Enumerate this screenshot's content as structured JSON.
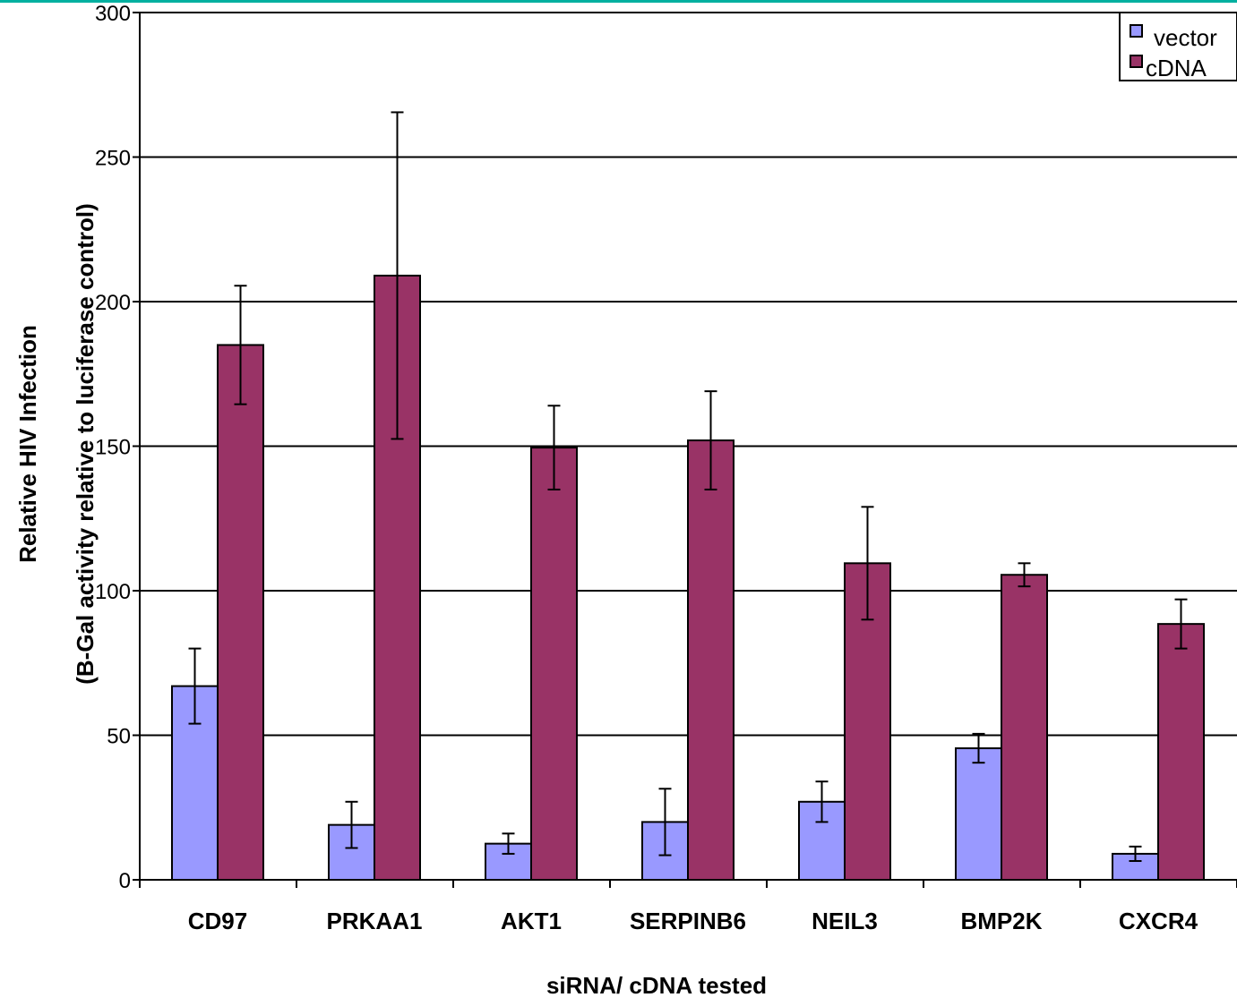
{
  "chart_data": {
    "type": "bar",
    "title": "",
    "xlabel": "siRNA/ cDNA tested",
    "ylabel_line1": "Relative HIV Infection",
    "ylabel_line2": "(B-Gal activity relative to luciferase control)",
    "ylim": [
      0,
      300
    ],
    "yticks": [
      0,
      50,
      100,
      150,
      200,
      250,
      300
    ],
    "grid": true,
    "legend_position": "top-right",
    "categories": [
      "CD97",
      "PRKAA1",
      "AKT1",
      "SERPINB6",
      "NEIL3",
      "BMP2K",
      "CXCR4"
    ],
    "series": [
      {
        "name": "vector",
        "color": "#9999ff",
        "values": [
          67,
          19,
          12.5,
          20,
          27,
          45.5,
          9
        ],
        "errors": [
          13,
          8,
          3.5,
          11.5,
          7,
          5,
          2.5
        ]
      },
      {
        "name": "cDNA",
        "color": "#993366",
        "values": [
          185,
          209,
          149.5,
          152,
          109.5,
          105.5,
          88.5
        ],
        "errors": [
          20.5,
          56.5,
          14.5,
          17,
          19.5,
          4,
          8.5
        ]
      }
    ]
  },
  "colors": {
    "top_rule": "#00b0a0"
  }
}
